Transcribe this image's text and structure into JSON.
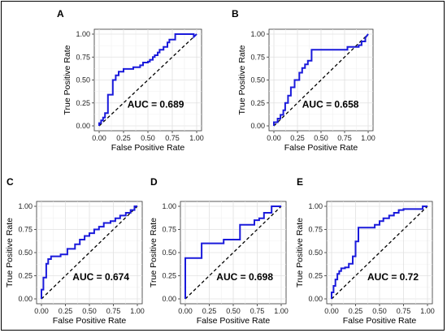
{
  "chart_data": [
    {
      "type": "line",
      "panel_label": "A",
      "xlabel": "False Positive Rate",
      "ylabel": "True Positive Rate",
      "xlim": [
        0,
        1
      ],
      "ylim": [
        0,
        1
      ],
      "xticks": [
        "0.00",
        "0.25",
        "0.50",
        "0.75",
        "1.00"
      ],
      "yticks": [
        "0.00",
        "0.25",
        "0.50",
        "0.75",
        "1.00"
      ],
      "grid": true,
      "annotation": "AUC = 0.689",
      "diagonal": true,
      "series": [
        {
          "color": "#1a1adb",
          "x": [
            0,
            0,
            0.02,
            0.02,
            0.04,
            0.04,
            0.06,
            0.06,
            0.09,
            0.09,
            0.14,
            0.14,
            0.17,
            0.17,
            0.2,
            0.2,
            0.25,
            0.25,
            0.35,
            0.35,
            0.42,
            0.42,
            0.45,
            0.45,
            0.5,
            0.5,
            0.52,
            0.52,
            0.55,
            0.55,
            0.57,
            0.57,
            0.6,
            0.6,
            0.62,
            0.62,
            0.66,
            0.66,
            0.7,
            0.7,
            0.72,
            0.72,
            0.78,
            0.78,
            0.97,
            0.97,
            1.0
          ],
          "y": [
            0,
            0.03,
            0.03,
            0.06,
            0.06,
            0.09,
            0.09,
            0.14,
            0.14,
            0.34,
            0.34,
            0.5,
            0.5,
            0.55,
            0.55,
            0.59,
            0.59,
            0.62,
            0.62,
            0.64,
            0.64,
            0.66,
            0.66,
            0.69,
            0.69,
            0.7,
            0.7,
            0.72,
            0.72,
            0.75,
            0.75,
            0.77,
            0.77,
            0.8,
            0.8,
            0.83,
            0.83,
            0.86,
            0.86,
            0.91,
            0.91,
            0.94,
            0.94,
            1.0,
            1.0,
            0.97,
            1.0
          ]
        }
      ]
    },
    {
      "type": "line",
      "panel_label": "B",
      "xlabel": "False Positive Rate",
      "ylabel": "True Positive Rate",
      "xlim": [
        0,
        1
      ],
      "ylim": [
        0,
        1
      ],
      "xticks": [
        "0.00",
        "0.25",
        "0.50",
        "0.75",
        "1.00"
      ],
      "yticks": [
        "0.00",
        "0.25",
        "0.50",
        "0.75",
        "1.00"
      ],
      "grid": true,
      "annotation": "AUC = 0.658",
      "diagonal": true,
      "series": [
        {
          "color": "#1a1adb",
          "x": [
            0,
            0,
            0.04,
            0.04,
            0.07,
            0.07,
            0.1,
            0.1,
            0.12,
            0.12,
            0.15,
            0.15,
            0.18,
            0.18,
            0.22,
            0.22,
            0.27,
            0.27,
            0.3,
            0.3,
            0.33,
            0.33,
            0.36,
            0.36,
            0.4,
            0.4,
            0.78,
            0.78,
            0.9,
            0.9,
            0.93,
            0.93,
            0.97,
            0.97,
            1.0
          ],
          "y": [
            0,
            0.04,
            0.04,
            0.08,
            0.08,
            0.12,
            0.12,
            0.17,
            0.17,
            0.25,
            0.25,
            0.33,
            0.33,
            0.42,
            0.42,
            0.5,
            0.5,
            0.58,
            0.58,
            0.63,
            0.63,
            0.67,
            0.67,
            0.71,
            0.71,
            0.83,
            0.83,
            0.86,
            0.86,
            0.88,
            0.88,
            0.92,
            0.92,
            0.96,
            1.0
          ]
        }
      ]
    },
    {
      "type": "line",
      "panel_label": "C",
      "xlabel": "False Positive Rate",
      "ylabel": "True Positive Rate",
      "xlim": [
        0,
        1
      ],
      "ylim": [
        0,
        1
      ],
      "xticks": [
        "0.00",
        "0.25",
        "0.50",
        "0.75",
        "1.00"
      ],
      "yticks": [
        "0.00",
        "0.25",
        "0.50",
        "0.75",
        "1.00"
      ],
      "grid": true,
      "annotation": "AUC = 0.674",
      "diagonal": true,
      "series": [
        {
          "color": "#1a1adb",
          "x": [
            0,
            0,
            0.02,
            0.02,
            0.05,
            0.05,
            0.07,
            0.07,
            0.1,
            0.1,
            0.2,
            0.2,
            0.27,
            0.27,
            0.35,
            0.35,
            0.4,
            0.4,
            0.45,
            0.45,
            0.5,
            0.5,
            0.55,
            0.55,
            0.6,
            0.6,
            0.65,
            0.65,
            0.72,
            0.72,
            0.77,
            0.77,
            0.82,
            0.82,
            0.88,
            0.88,
            0.93,
            0.93,
            0.97,
            0.97,
            1.0
          ],
          "y": [
            0,
            0.1,
            0.1,
            0.23,
            0.23,
            0.38,
            0.38,
            0.43,
            0.43,
            0.46,
            0.46,
            0.48,
            0.48,
            0.54,
            0.54,
            0.59,
            0.59,
            0.64,
            0.64,
            0.68,
            0.68,
            0.71,
            0.71,
            0.75,
            0.75,
            0.78,
            0.78,
            0.82,
            0.82,
            0.84,
            0.84,
            0.87,
            0.87,
            0.9,
            0.9,
            0.93,
            0.93,
            0.96,
            0.96,
            1.0,
            1.0
          ]
        }
      ]
    },
    {
      "type": "line",
      "panel_label": "D",
      "xlabel": "False Positive Rate",
      "ylabel": "True Positive Rate",
      "xlim": [
        0,
        1
      ],
      "ylim": [
        0,
        1
      ],
      "xticks": [
        "0.00",
        "0.25",
        "0.50",
        "0.75",
        "1.00"
      ],
      "yticks": [
        "0.00",
        "0.25",
        "0.50",
        "0.75",
        "1.00"
      ],
      "grid": true,
      "annotation": "AUC = 0.698",
      "diagonal": true,
      "series": [
        {
          "color": "#1a1adb",
          "x": [
            0,
            0,
            0.17,
            0.17,
            0.4,
            0.4,
            0.57,
            0.57,
            0.72,
            0.72,
            0.77,
            0.77,
            0.82,
            0.82,
            0.9,
            0.9,
            1.0
          ],
          "y": [
            0,
            0.44,
            0.44,
            0.6,
            0.6,
            0.64,
            0.64,
            0.8,
            0.8,
            0.85,
            0.85,
            0.87,
            0.87,
            0.93,
            0.93,
            1.0,
            1.0
          ]
        }
      ]
    },
    {
      "type": "line",
      "panel_label": "E",
      "xlabel": "False Positive Rate",
      "ylabel": "True Positive Rate",
      "xlim": [
        0,
        1
      ],
      "ylim": [
        0,
        1
      ],
      "xticks": [
        "0.00",
        "0.25",
        "0.50",
        "0.75",
        "1.00"
      ],
      "yticks": [
        "0.00",
        "0.25",
        "0.50",
        "0.75",
        "1.00"
      ],
      "grid": true,
      "annotation": "AUC = 0.72",
      "diagonal": true,
      "series": [
        {
          "color": "#1a1adb",
          "x": [
            0,
            0,
            0.02,
            0.02,
            0.04,
            0.04,
            0.06,
            0.06,
            0.08,
            0.08,
            0.1,
            0.1,
            0.14,
            0.14,
            0.18,
            0.18,
            0.22,
            0.22,
            0.25,
            0.25,
            0.28,
            0.28,
            0.45,
            0.45,
            0.5,
            0.5,
            0.54,
            0.54,
            0.6,
            0.6,
            0.65,
            0.65,
            0.7,
            0.7,
            0.75,
            0.75,
            0.95,
            0.95,
            1.0
          ],
          "y": [
            0,
            0.07,
            0.07,
            0.14,
            0.14,
            0.21,
            0.21,
            0.27,
            0.27,
            0.3,
            0.3,
            0.33,
            0.33,
            0.34,
            0.34,
            0.38,
            0.38,
            0.46,
            0.46,
            0.62,
            0.62,
            0.77,
            0.77,
            0.8,
            0.8,
            0.84,
            0.84,
            0.87,
            0.87,
            0.9,
            0.9,
            0.93,
            0.93,
            0.96,
            0.96,
            0.97,
            0.97,
            1.0,
            1.0
          ]
        }
      ]
    }
  ]
}
